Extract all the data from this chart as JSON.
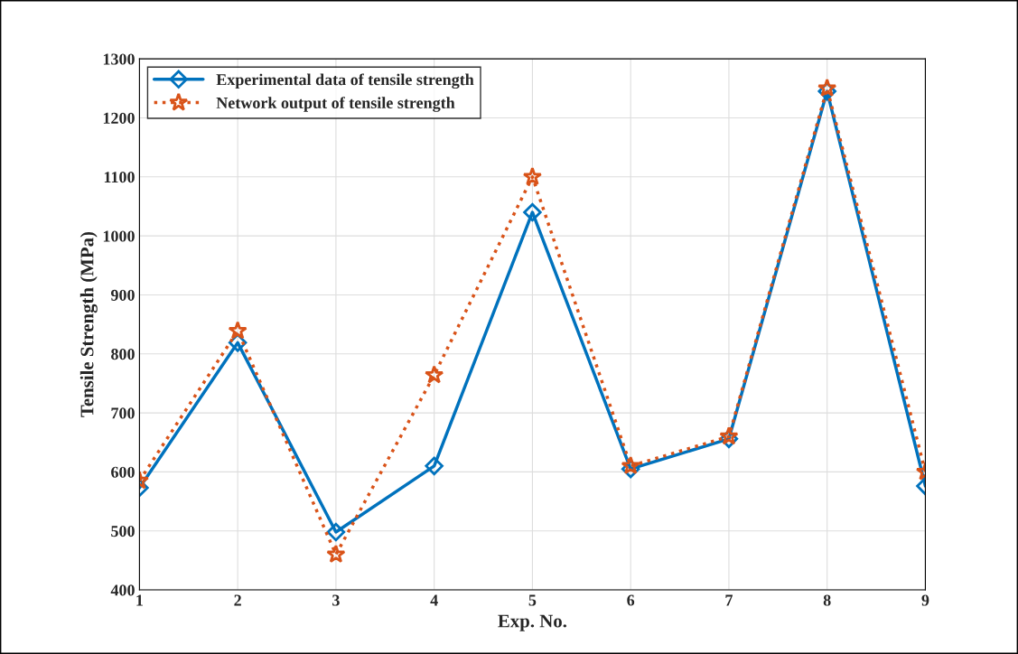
{
  "chart_data": {
    "type": "line",
    "xlabel": "Exp. No.",
    "ylabel": "Tensile Strength (MPa)",
    "x": [
      1,
      2,
      3,
      4,
      5,
      6,
      7,
      8,
      9
    ],
    "series": [
      {
        "name": "Experimental data of tensile strength",
        "color": "#0072bd",
        "marker": "diamond",
        "line_style": "solid",
        "values": [
          573,
          819,
          498,
          610,
          1040,
          605,
          656,
          1245,
          576
        ]
      },
      {
        "name": "Network output of tensile strength",
        "color": "#d95319",
        "marker": "star",
        "line_style": "dotted",
        "values": [
          585,
          839,
          460,
          764,
          1100,
          610,
          660,
          1250,
          600
        ]
      }
    ],
    "xlim": [
      1,
      9
    ],
    "xticks": [
      1,
      2,
      3,
      4,
      5,
      6,
      7,
      8,
      9
    ],
    "ylim": [
      400,
      1300
    ],
    "yticks": [
      400,
      500,
      600,
      700,
      800,
      900,
      1000,
      1100,
      1200,
      1300
    ],
    "grid": true,
    "legend": "top left"
  }
}
